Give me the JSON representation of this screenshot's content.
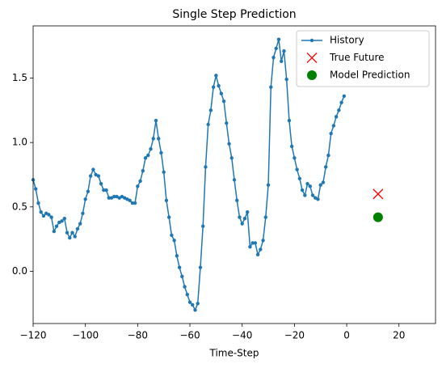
{
  "chart_data": {
    "type": "line",
    "title": "Single Step Prediction",
    "x_label": "Time-Step",
    "xlim": [
      -120,
      34
    ],
    "ylim": [
      -0.405,
      1.905
    ],
    "xticks": [
      {
        "value": -120,
        "label": "−120"
      },
      {
        "value": -100,
        "label": "−100"
      },
      {
        "value": -80,
        "label": "−80"
      },
      {
        "value": -60,
        "label": "−60"
      },
      {
        "value": -40,
        "label": "−40"
      },
      {
        "value": -20,
        "label": "−20"
      },
      0,
      20
    ],
    "yticks": [
      {
        "value": 0,
        "label": "0.0"
      },
      0.5,
      {
        "value": 1,
        "label": "1.0"
      },
      1.5
    ],
    "legend": "upper right",
    "series": [
      {
        "name": "History",
        "color": "#1f77b4",
        "marker": "dot",
        "x": [
          -120,
          -119,
          -118,
          -117,
          -116,
          -115,
          -114,
          -113,
          -112,
          -111,
          -110,
          -109,
          -108,
          -107,
          -106,
          -105,
          -104,
          -103,
          -102,
          -101,
          -100,
          -99,
          -98,
          -97,
          -96,
          -95,
          -94,
          -93,
          -92,
          -91,
          -90,
          -89,
          -88,
          -87,
          -86,
          -85,
          -84,
          -83,
          -82,
          -81,
          -80,
          -79,
          -78,
          -77,
          -76,
          -75,
          -74,
          -73,
          -72,
          -71,
          -70,
          -69,
          -68,
          -67,
          -66,
          -65,
          -64,
          -63,
          -62,
          -61,
          -60,
          -59,
          -58,
          -57,
          -56,
          -55,
          -54,
          -53,
          -52,
          -51,
          -50,
          -49,
          -48,
          -47,
          -46,
          -45,
          -44,
          -43,
          -42,
          -41,
          -40,
          -39,
          -38,
          -37,
          -36,
          -35,
          -34,
          -33,
          -32,
          -31,
          -30,
          -29,
          -28,
          -27,
          -26,
          -25,
          -24,
          -23,
          -22,
          -21,
          -20,
          -19,
          -18,
          -17,
          -16,
          -15,
          -14,
          -13,
          -12,
          -11,
          -10,
          -9,
          -8,
          -7,
          -6,
          -5,
          -4,
          -3,
          -2,
          -1
        ],
        "values": [
          0.71,
          0.64,
          0.53,
          0.46,
          0.43,
          0.45,
          0.44,
          0.42,
          0.31,
          0.35,
          0.38,
          0.39,
          0.41,
          0.3,
          0.26,
          0.3,
          0.27,
          0.33,
          0.37,
          0.45,
          0.56,
          0.62,
          0.74,
          0.79,
          0.75,
          0.74,
          0.68,
          0.63,
          0.63,
          0.57,
          0.57,
          0.58,
          0.58,
          0.57,
          0.58,
          0.57,
          0.56,
          0.55,
          0.53,
          0.53,
          0.66,
          0.7,
          0.78,
          0.88,
          0.9,
          0.95,
          1.03,
          1.17,
          1.03,
          0.92,
          0.77,
          0.55,
          0.42,
          0.28,
          0.24,
          0.12,
          0.03,
          -0.04,
          -0.12,
          -0.18,
          -0.24,
          -0.26,
          -0.3,
          -0.25,
          0.03,
          0.35,
          0.81,
          1.14,
          1.25,
          1.43,
          1.52,
          1.44,
          1.38,
          1.32,
          1.15,
          0.99,
          0.88,
          0.71,
          0.55,
          0.42,
          0.37,
          0.41,
          0.46,
          0.19,
          0.22,
          0.22,
          0.13,
          0.17,
          0.24,
          0.42,
          0.67,
          1.43,
          1.66,
          1.73,
          1.8,
          1.63,
          1.71,
          1.49,
          1.17,
          0.97,
          0.88,
          0.79,
          0.72,
          0.63,
          0.59,
          0.68,
          0.66,
          0.59,
          0.57,
          0.56,
          0.67,
          0.69,
          0.81,
          0.9,
          1.07,
          1.13,
          1.2,
          1.25,
          1.31,
          1.36
        ]
      },
      {
        "name": "True Future",
        "color": "red",
        "marker": "x",
        "x": [
          12
        ],
        "values": [
          0.6
        ]
      },
      {
        "name": "Model Prediction",
        "color": "green",
        "marker": "o",
        "x": [
          12
        ],
        "values": [
          0.42
        ]
      }
    ]
  }
}
